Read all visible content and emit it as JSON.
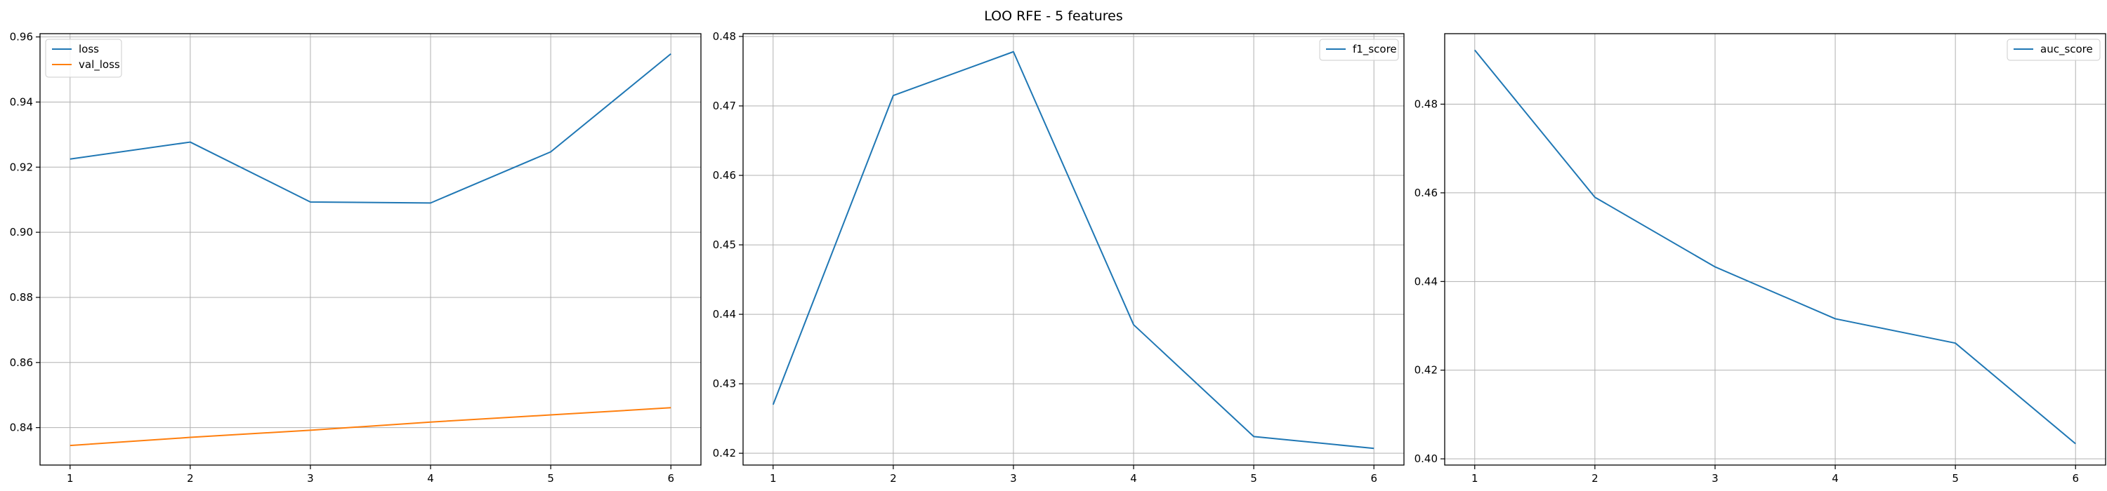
{
  "title": "LOO RFE - 5 features",
  "colors": {
    "series1": "#1f77b4",
    "series2": "#ff7f0e",
    "grid": "#b0b0b0",
    "axis": "#000000"
  },
  "chart_data": [
    {
      "type": "line",
      "x": [
        1,
        2,
        3,
        4,
        5,
        6
      ],
      "xlim": [
        0.75,
        6.25
      ],
      "ylim": [
        0.8285,
        0.961
      ],
      "xticks": [
        1,
        2,
        3,
        4,
        5,
        6
      ],
      "yticks": [
        0.84,
        0.86,
        0.88,
        0.9,
        0.92,
        0.94,
        0.96
      ],
      "ytick_labels": [
        "0.84",
        "0.86",
        "0.88",
        "0.90",
        "0.92",
        "0.94",
        "0.96"
      ],
      "grid": true,
      "legend_position": "top-left",
      "series": [
        {
          "name": "loss",
          "color": "#1f77b4",
          "values": [
            0.9225,
            0.9277,
            0.9093,
            0.909,
            0.9247,
            0.9548
          ]
        },
        {
          "name": "val_loss",
          "color": "#ff7f0e",
          "values": [
            0.8345,
            0.837,
            0.8392,
            0.8417,
            0.8439,
            0.8461
          ]
        }
      ]
    },
    {
      "type": "line",
      "x": [
        1,
        2,
        3,
        4,
        5,
        6
      ],
      "xlim": [
        0.75,
        6.25
      ],
      "ylim": [
        0.4183,
        0.4804
      ],
      "xticks": [
        1,
        2,
        3,
        4,
        5,
        6
      ],
      "yticks": [
        0.42,
        0.43,
        0.44,
        0.45,
        0.46,
        0.47,
        0.48
      ],
      "ytick_labels": [
        "0.42",
        "0.43",
        "0.44",
        "0.45",
        "0.46",
        "0.47",
        "0.48"
      ],
      "grid": true,
      "legend_position": "top-right",
      "series": [
        {
          "name": "f1_score",
          "color": "#1f77b4",
          "values": [
            0.427,
            0.4715,
            0.4778,
            0.4385,
            0.4224,
            0.4207
          ]
        }
      ]
    },
    {
      "type": "line",
      "x": [
        1,
        2,
        3,
        4,
        5,
        6
      ],
      "xlim": [
        0.75,
        6.25
      ],
      "ylim": [
        0.3986,
        0.4959
      ],
      "xticks": [
        1,
        2,
        3,
        4,
        5,
        6
      ],
      "yticks": [
        0.4,
        0.42,
        0.44,
        0.46,
        0.48
      ],
      "ytick_labels": [
        "0.40",
        "0.42",
        "0.44",
        "0.46",
        "0.48"
      ],
      "grid": true,
      "legend_position": "top-right",
      "series": [
        {
          "name": "auc_score",
          "color": "#1f77b4",
          "values": [
            0.4922,
            0.459,
            0.4433,
            0.4316,
            0.4261,
            0.4034
          ]
        }
      ]
    }
  ]
}
